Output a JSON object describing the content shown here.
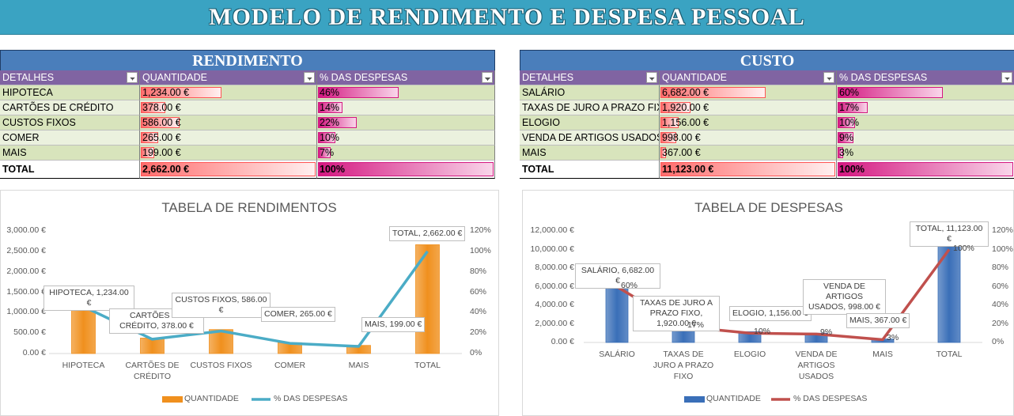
{
  "header": {
    "title": "MODELO DE RENDIMENTO E DESPESA PESSOAL"
  },
  "tables": [
    {
      "title": "RENDIMENTO",
      "columns": [
        "DETALHES",
        "QUANTIDADE",
        "% DAS DESPESAS"
      ],
      "rows": [
        [
          "HIPOTECA",
          {
            "value": 1234,
            "label": "1,234.00 €"
          },
          {
            "value": 46,
            "label": "46%"
          }
        ],
        [
          "CARTÕES DE CRÉDITO",
          {
            "value": 378,
            "label": "378.00 €"
          },
          {
            "value": 14,
            "label": "14%"
          }
        ],
        [
          "CUSTOS FIXOS",
          {
            "value": 586,
            "label": "586.00 €"
          },
          {
            "value": 22,
            "label": "22%"
          }
        ],
        [
          "COMER",
          {
            "value": 265,
            "label": "265.00 €"
          },
          {
            "value": 10,
            "label": "10%"
          }
        ],
        [
          "MAIS",
          {
            "value": 199,
            "label": "199.00 €"
          },
          {
            "value": 7,
            "label": "7%"
          }
        ],
        [
          "TOTAL",
          {
            "value": 2662,
            "label": "2,662.00 €"
          },
          {
            "value": 100,
            "label": "100%"
          }
        ]
      ]
    },
    {
      "title": "CUSTO",
      "columns": [
        "DETALHES",
        "QUANTIDADE",
        "% DAS DESPESAS"
      ],
      "rows": [
        [
          "SALÁRIO",
          {
            "value": 6682,
            "label": "6,682.00 €"
          },
          {
            "value": 60,
            "label": "60%"
          }
        ],
        [
          "TAXAS DE JURO A PRAZO FIX",
          {
            "value": 1920,
            "label": "1,920.00 €"
          },
          {
            "value": 17,
            "label": "17%"
          }
        ],
        [
          "ELOGIO",
          {
            "value": 1156,
            "label": "1,156.00 €"
          },
          {
            "value": 10,
            "label": "10%"
          }
        ],
        [
          "VENDA DE ARTIGOS USADOS",
          {
            "value": 998,
            "label": "998.00 €"
          },
          {
            "value": 9,
            "label": "9%"
          }
        ],
        [
          "MAIS",
          {
            "value": 367,
            "label": "367.00 €"
          },
          {
            "value": 3,
            "label": "3%"
          }
        ],
        [
          "TOTAL",
          {
            "value": 11123,
            "label": "11,123.00 €"
          },
          {
            "value": 100,
            "label": "100%"
          }
        ]
      ]
    }
  ],
  "chart_data": [
    {
      "type": "combo",
      "title": "TABELA DE RENDIMENTOS",
      "categories": [
        "HIPOTECA",
        "CARTÕES DE CRÉDITO",
        "CUSTOS FIXOS",
        "COMER",
        "MAIS",
        "TOTAL"
      ],
      "series": [
        {
          "name": "QUANTIDADE",
          "type": "bar",
          "color": "#f0901e",
          "values": [
            1234,
            378,
            586,
            265,
            199,
            2662
          ],
          "value_labels": [
            "HIPOTECA, 1,234.00 €",
            "CARTÕES DE CRÉDITO, 378.00 €",
            "CUSTOS FIXOS, 586.00 €",
            "COMER, 265.00 €",
            "MAIS, 199.00 €",
            "TOTAL, 2,662.00 €"
          ]
        },
        {
          "name": "% DAS DESPESAS",
          "type": "line",
          "axis": "y2",
          "color": "#4bacc6",
          "values": [
            46,
            14,
            22,
            10,
            7,
            100
          ]
        }
      ],
      "ylim": [
        0,
        3000
      ],
      "yticks": [
        {
          "value": 0,
          "label": "0.00 €"
        },
        {
          "value": 500,
          "label": "500.00 €"
        },
        {
          "value": 1000,
          "label": "1,000.00 €"
        },
        {
          "value": 1500,
          "label": "1,500.00 €"
        },
        {
          "value": 2000,
          "label": "2,000.00 €"
        },
        {
          "value": 2500,
          "label": "2,500.00 €"
        },
        {
          "value": 3000,
          "label": "3,000.00 €"
        }
      ],
      "y2lim": [
        0,
        120
      ],
      "y2ticks": [
        {
          "value": 0,
          "label": "0%"
        },
        {
          "value": 20,
          "label": "20%"
        },
        {
          "value": 40,
          "label": "40%"
        },
        {
          "value": 60,
          "label": "60%"
        },
        {
          "value": 80,
          "label": "80%"
        },
        {
          "value": 100,
          "label": "100%"
        },
        {
          "value": 120,
          "label": "120%"
        }
      ],
      "legend": "bottom"
    },
    {
      "type": "combo",
      "title": "TABELA DE DESPESAS",
      "categories": [
        "SALÁRIO",
        "TAXAS DE JURO A PRAZO FIXO",
        "ELOGIO",
        "VENDA DE ARTIGOS USADOS",
        "MAIS",
        "TOTAL"
      ],
      "series": [
        {
          "name": "QUANTIDADE",
          "type": "bar",
          "color": "#3a6fb8",
          "values": [
            6682,
            1920,
            1156,
            998,
            367,
            11123
          ],
          "value_labels": [
            "SALÁRIO, 6,682.00 €",
            "TAXAS DE JURO A PRAZO FIXO, 1,920.00 €",
            "ELOGIO, 1,156.00 €",
            "VENDA DE ARTIGOS USADOS, 998.00 €",
            "MAIS, 367.00 €",
            "TOTAL, 11,123.00 €"
          ]
        },
        {
          "name": "% DAS DESPESAS",
          "type": "line",
          "axis": "y2",
          "color": "#c0504d",
          "values": [
            60,
            17,
            10,
            9,
            3,
            100
          ],
          "value_labels": [
            "60%",
            "17%",
            "10%",
            "9%",
            "3%",
            "100%"
          ]
        }
      ],
      "ylim": [
        0,
        12000
      ],
      "yticks": [
        {
          "value": 0,
          "label": "0.00 €"
        },
        {
          "value": 2000,
          "label": "2,000.00 €"
        },
        {
          "value": 4000,
          "label": "4,000.00 €"
        },
        {
          "value": 6000,
          "label": "6,000.00 €"
        },
        {
          "value": 8000,
          "label": "8,000.00 €"
        },
        {
          "value": 10000,
          "label": "10,000.00 €"
        },
        {
          "value": 12000,
          "label": "12,000.00 €"
        }
      ],
      "y2lim": [
        0,
        120
      ],
      "y2ticks": [
        {
          "value": 0,
          "label": "0%"
        },
        {
          "value": 20,
          "label": "20%"
        },
        {
          "value": 40,
          "label": "40%"
        },
        {
          "value": 60,
          "label": "60%"
        },
        {
          "value": 80,
          "label": "80%"
        },
        {
          "value": 100,
          "label": "100%"
        },
        {
          "value": 120,
          "label": "120%"
        }
      ],
      "legend": "bottom"
    }
  ]
}
